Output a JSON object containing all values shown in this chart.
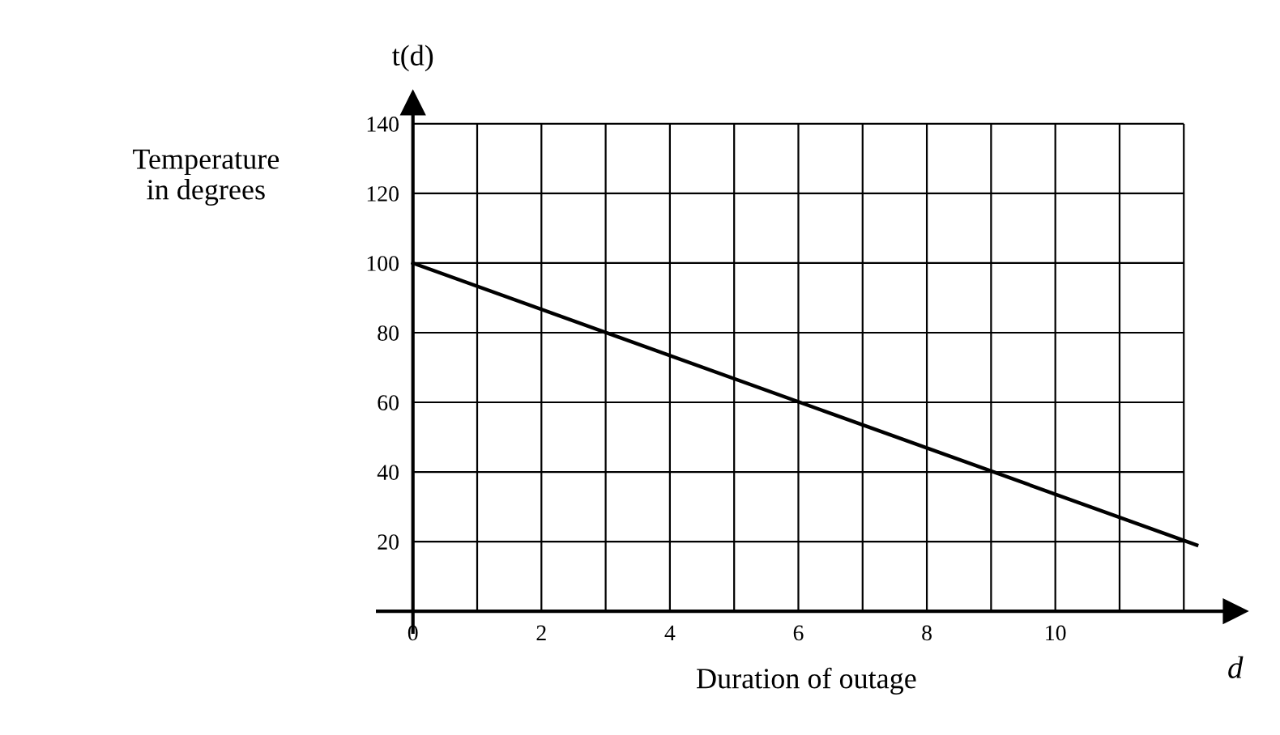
{
  "chart_data": {
    "type": "line",
    "xlabel": "Duration of outage",
    "ylabel": "Temperature\nin degrees",
    "annotations": [
      "t(d)",
      "d"
    ],
    "x": [
      0,
      12.2
    ],
    "series": [
      {
        "color": "#000000",
        "values": [
          100,
          19
        ]
      }
    ],
    "xlim": [
      -0.55,
      12.8
    ],
    "ylim": [
      -6,
      146
    ],
    "xticks": [
      0,
      {
        "value": 1,
        "label": null
      },
      2,
      {
        "value": 3,
        "label": null
      },
      4,
      {
        "value": 5,
        "label": null
      },
      6,
      {
        "value": 7,
        "label": null
      },
      8,
      {
        "value": 9,
        "label": null
      },
      10,
      {
        "value": 11,
        "label": null
      },
      {
        "value": 12,
        "label": null
      }
    ],
    "yticks": [
      {
        "value": 0,
        "label": null
      },
      20,
      40,
      60,
      80,
      100,
      120,
      140
    ],
    "grid": true,
    "marker": "none",
    "line_style": "solid",
    "legend": false
  }
}
